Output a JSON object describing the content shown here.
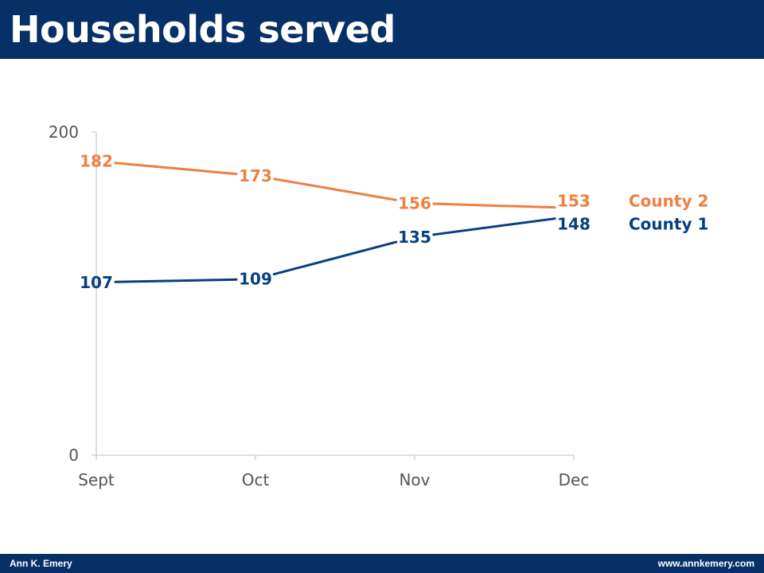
{
  "header": {
    "title": "Households served"
  },
  "footer": {
    "left": "Ann K. Emery",
    "right": "www.annkemery.com"
  },
  "colors": {
    "header_bg": "#073166",
    "county1": "#073F80",
    "county2": "#EE7F40",
    "axis": "#BFBFBF",
    "tick_text": "#555555"
  },
  "chart_data": {
    "type": "line",
    "title": "Households served",
    "categories": [
      "Sept",
      "Oct",
      "Nov",
      "Dec"
    ],
    "ylim": [
      0,
      200
    ],
    "yticks": [
      "0",
      "200"
    ],
    "grid": false,
    "legend": "right-end-labels",
    "series": [
      {
        "name": "County 2",
        "values": [
          182,
          173,
          156,
          153
        ]
      },
      {
        "name": "County 1",
        "values": [
          107,
          109,
          135,
          148
        ]
      }
    ]
  }
}
